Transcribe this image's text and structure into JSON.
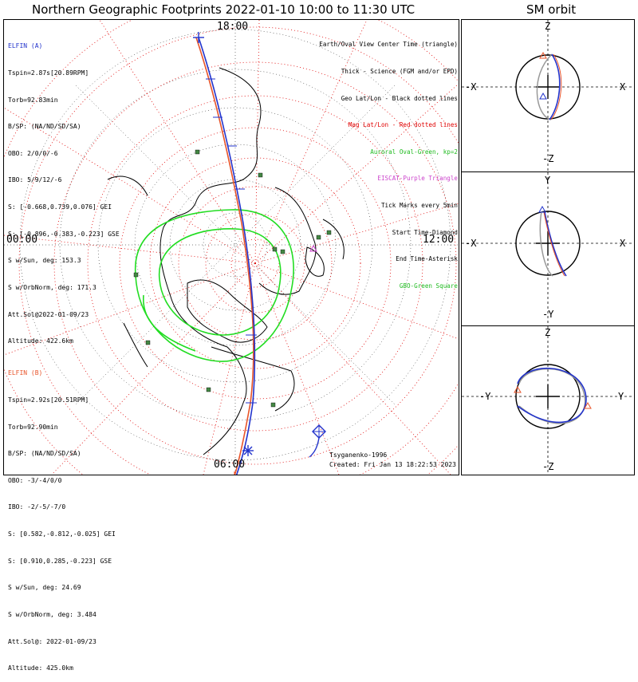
{
  "title": "Northern Geographic Footprints 2022-01-10 10:00 to 11:30 UTC",
  "sm_title": "SM orbit",
  "elfin_a": {
    "name": "ELFIN (A)",
    "color": "#2233cc",
    "lines": [
      "Tspin=2.87s[20.89RPM]",
      "Torb=92.83min",
      "B/SP: (NA/ND/SD/SA)",
      "OBO: 2/0/0/-6",
      "IBO: 5/9/12/-6",
      "S: [-0.668,0.739,0.076] GEI",
      "S: [-0.896,-0.383,-0.223] GSE",
      "S w/Sun, deg: 153.3",
      "S w/OrbNorm, deg: 171.3",
      "Att.Sol@2022-01-09/23",
      "Altitude: 422.6km"
    ]
  },
  "elfin_b": {
    "name": "ELFIN (B)",
    "color": "#e8542a",
    "lines": [
      "Tspin=2.92s[20.51RPM]",
      "Torb=92.90min",
      "B/SP: (NA/ND/SD/SA)",
      "OBO: -3/-4/0/0",
      "IBO: -2/-5/-7/0",
      "S: [0.582,-0.812,-0.025] GEI",
      "S: [0.910,0.285,-0.223] GSE",
      "S w/Sun, deg: 24.69",
      "S w/OrbNorm, deg: 3.484",
      "Att.Sol@: 2022-01-09/23",
      "Altitude: 425.0km"
    ]
  },
  "legend": [
    {
      "text": "Earth/Oval View Center Time (triangle)",
      "color": "#000000"
    },
    {
      "text": "Thick - Science (FGM and/or EPD)",
      "color": "#000000"
    },
    {
      "text": "Geo Lat/Lon - Black dotted lines",
      "color": "#000000"
    },
    {
      "text": "Mag Lat/Lon - Red dotted lines",
      "color": "#e00000"
    },
    {
      "text": "Auroral Oval-Green, kp=2",
      "color": "#22bb22"
    },
    {
      "text": "EISCAT-Purple Triangle",
      "color": "#cc44cc"
    },
    {
      "text": "Tick Marks every 5min",
      "color": "#000000"
    },
    {
      "text": "Start Time-Diamond",
      "color": "#000000"
    },
    {
      "text": "End Time-Asterisk",
      "color": "#000000"
    },
    {
      "text": "GBO-Green Square",
      "color": "#22bb22"
    }
  ],
  "map_labels": {
    "top": "18:00",
    "bottom": "06:00",
    "left": "00:00",
    "right": "12:00"
  },
  "footer": {
    "left": "Tsyganenko-1996",
    "right": "Created: Fri Jan 13 18:22:53 2023"
  },
  "sm_panels": [
    {
      "up": "Z",
      "down": "-Z",
      "left": "-X",
      "right": "X"
    },
    {
      "up": "Y",
      "down": "-Y",
      "left": "-X",
      "right": "X"
    },
    {
      "up": "Z",
      "down": "-Z",
      "left": "-Y",
      "right": "Y"
    }
  ],
  "colors": {
    "elfin_a": "#2233cc",
    "elfin_b": "#e8542a",
    "oval": "#22dd22",
    "grid_mag": "#e00000",
    "gbo": "#448844",
    "eiscat": "#cc44cc"
  }
}
